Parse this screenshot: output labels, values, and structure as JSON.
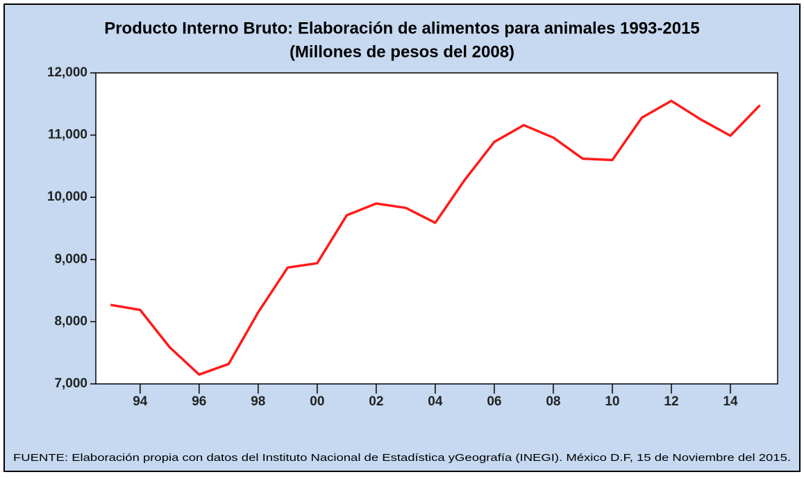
{
  "chart_data": {
    "type": "line",
    "title": "Producto Interno Bruto: Elaboración de alimentos para animales 1993-2015",
    "subtitle": "(Millones de pesos del 2008)",
    "x": [
      1993,
      1994,
      1995,
      1996,
      1997,
      1998,
      1999,
      2000,
      2001,
      2002,
      2003,
      2004,
      2005,
      2006,
      2007,
      2008,
      2009,
      2010,
      2011,
      2012,
      2013,
      2014,
      2015
    ],
    "series": [
      {
        "name": "PIB",
        "color": "#ff1a1a",
        "values": [
          8270,
          8190,
          7590,
          7150,
          7320,
          8150,
          8870,
          8940,
          9710,
          9900,
          9830,
          9590,
          10280,
          10890,
          11160,
          10960,
          10620,
          10600,
          11280,
          11550,
          11250,
          10990,
          11480
        ]
      }
    ],
    "xlim": [
      1992.5,
      2015.6
    ],
    "xticks": [
      {
        "value": 1994,
        "label": "94"
      },
      {
        "value": 1996,
        "label": "96"
      },
      {
        "value": 1998,
        "label": "98"
      },
      {
        "value": 2000,
        "label": "00"
      },
      {
        "value": 2002,
        "label": "02"
      },
      {
        "value": 2004,
        "label": "04"
      },
      {
        "value": 2006,
        "label": "06"
      },
      {
        "value": 2008,
        "label": "08"
      },
      {
        "value": 2010,
        "label": "10"
      },
      {
        "value": 2012,
        "label": "12"
      },
      {
        "value": 2014,
        "label": "14"
      }
    ],
    "ylim": [
      7000,
      12000
    ],
    "yticks": [
      {
        "value": 7000,
        "label": "7,000"
      },
      {
        "value": 8000,
        "label": "8,000"
      },
      {
        "value": 9000,
        "label": "9,000"
      },
      {
        "value": 10000,
        "label": "10,000"
      },
      {
        "value": 11000,
        "label": "11,000"
      },
      {
        "value": 12000,
        "label": "12,000"
      }
    ],
    "source": "FUENTE: Elaboración propia con datos del Instituto Nacional de Estadística yGeografía (INEGI). México D.F, 15 de Noviembre del 2015."
  }
}
